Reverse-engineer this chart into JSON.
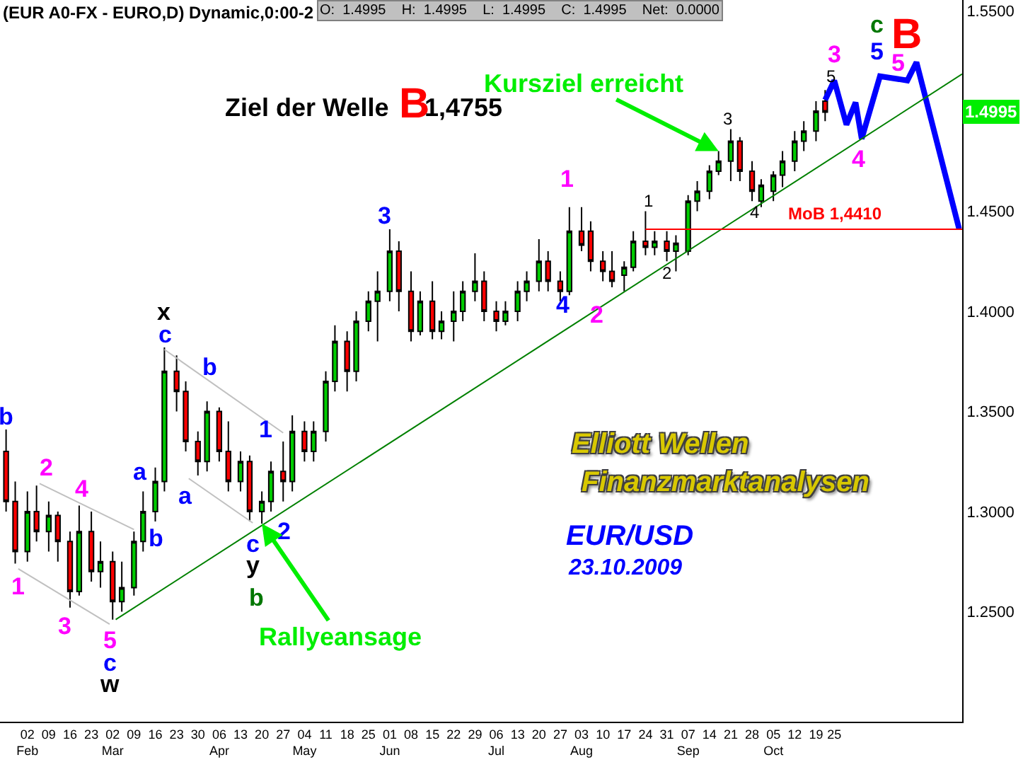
{
  "chart_data": {
    "type": "candlestick",
    "title": "(EUR A0-FX - EURO,D) Dynamic,0:00-2",
    "subtitle": "O:  1.4995    H:  1.4995    L:  1.4995    C:  1.4995    Net:  0.0000",
    "x": [
      "2009-01-26",
      "2009-01-29",
      "2009-02-02",
      "2009-02-05",
      "2009-02-09",
      "2009-02-12",
      "2009-02-16",
      "2009-02-19",
      "2009-02-23",
      "2009-02-26",
      "2009-03-02",
      "2009-03-05",
      "2009-03-09",
      "2009-03-12",
      "2009-03-16",
      "2009-03-19",
      "2009-03-23",
      "2009-03-26",
      "2009-03-30",
      "2009-04-02",
      "2009-04-06",
      "2009-04-09",
      "2009-04-13",
      "2009-04-16",
      "2009-04-20",
      "2009-04-23",
      "2009-04-27",
      "2009-04-30",
      "2009-05-04",
      "2009-05-07",
      "2009-05-11",
      "2009-05-14",
      "2009-05-18",
      "2009-05-21",
      "2009-05-25",
      "2009-05-28",
      "2009-06-01",
      "2009-06-04",
      "2009-06-08",
      "2009-06-11",
      "2009-06-15",
      "2009-06-18",
      "2009-06-22",
      "2009-06-25",
      "2009-06-29",
      "2009-07-02",
      "2009-07-06",
      "2009-07-09",
      "2009-07-13",
      "2009-07-16",
      "2009-07-20",
      "2009-07-23",
      "2009-07-27",
      "2009-07-30",
      "2009-08-03",
      "2009-08-06",
      "2009-08-10",
      "2009-08-13",
      "2009-08-17",
      "2009-08-20",
      "2009-08-24",
      "2009-08-27",
      "2009-08-31",
      "2009-09-03",
      "2009-09-07",
      "2009-09-10",
      "2009-09-14",
      "2009-09-17",
      "2009-09-21",
      "2009-09-24",
      "2009-09-28",
      "2009-10-01",
      "2009-10-05",
      "2009-10-08",
      "2009-10-12",
      "2009-10-15",
      "2009-10-19",
      "2009-10-22"
    ],
    "ohlc": [
      [
        1.33,
        1.341,
        1.3,
        1.305
      ],
      [
        1.305,
        1.315,
        1.274,
        1.28
      ],
      [
        1.28,
        1.31,
        1.275,
        1.3
      ],
      [
        1.3,
        1.313,
        1.285,
        1.29
      ],
      [
        1.29,
        1.305,
        1.28,
        1.298
      ],
      [
        1.298,
        1.3,
        1.275,
        1.285
      ],
      [
        1.285,
        1.29,
        1.252,
        1.26
      ],
      [
        1.26,
        1.303,
        1.258,
        1.29
      ],
      [
        1.29,
        1.3,
        1.265,
        1.27
      ],
      [
        1.27,
        1.285,
        1.262,
        1.275
      ],
      [
        1.275,
        1.28,
        1.246,
        1.255
      ],
      [
        1.255,
        1.275,
        1.25,
        1.262
      ],
      [
        1.262,
        1.29,
        1.258,
        1.285
      ],
      [
        1.285,
        1.31,
        1.28,
        1.3
      ],
      [
        1.3,
        1.322,
        1.295,
        1.315
      ],
      [
        1.315,
        1.382,
        1.31,
        1.37
      ],
      [
        1.37,
        1.378,
        1.35,
        1.36
      ],
      [
        1.36,
        1.365,
        1.33,
        1.335
      ],
      [
        1.335,
        1.34,
        1.318,
        1.325
      ],
      [
        1.325,
        1.355,
        1.32,
        1.35
      ],
      [
        1.35,
        1.352,
        1.325,
        1.33
      ],
      [
        1.33,
        1.345,
        1.31,
        1.315
      ],
      [
        1.315,
        1.33,
        1.31,
        1.325
      ],
      [
        1.325,
        1.328,
        1.295,
        1.3
      ],
      [
        1.3,
        1.31,
        1.294,
        1.305
      ],
      [
        1.305,
        1.325,
        1.3,
        1.32
      ],
      [
        1.32,
        1.335,
        1.305,
        1.315
      ],
      [
        1.315,
        1.348,
        1.31,
        1.34
      ],
      [
        1.34,
        1.345,
        1.325,
        1.33
      ],
      [
        1.33,
        1.345,
        1.325,
        1.34
      ],
      [
        1.34,
        1.37,
        1.335,
        1.365
      ],
      [
        1.365,
        1.393,
        1.36,
        1.385
      ],
      [
        1.385,
        1.39,
        1.36,
        1.37
      ],
      [
        1.37,
        1.4,
        1.365,
        1.395
      ],
      [
        1.395,
        1.41,
        1.39,
        1.405
      ],
      [
        1.405,
        1.42,
        1.385,
        1.41
      ],
      [
        1.41,
        1.441,
        1.405,
        1.43
      ],
      [
        1.43,
        1.435,
        1.4,
        1.41
      ],
      [
        1.41,
        1.42,
        1.385,
        1.39
      ],
      [
        1.39,
        1.41,
        1.388,
        1.405
      ],
      [
        1.405,
        1.415,
        1.386,
        1.39
      ],
      [
        1.39,
        1.4,
        1.386,
        1.395
      ],
      [
        1.395,
        1.41,
        1.385,
        1.4
      ],
      [
        1.4,
        1.415,
        1.395,
        1.41
      ],
      [
        1.41,
        1.429,
        1.405,
        1.415
      ],
      [
        1.415,
        1.42,
        1.395,
        1.4
      ],
      [
        1.4,
        1.405,
        1.39,
        1.395
      ],
      [
        1.395,
        1.405,
        1.393,
        1.4
      ],
      [
        1.4,
        1.415,
        1.395,
        1.41
      ],
      [
        1.41,
        1.42,
        1.405,
        1.415
      ],
      [
        1.415,
        1.436,
        1.41,
        1.425
      ],
      [
        1.425,
        1.43,
        1.41,
        1.415
      ],
      [
        1.415,
        1.42,
        1.405,
        1.41
      ],
      [
        1.41,
        1.452,
        1.408,
        1.44
      ],
      [
        1.44,
        1.452,
        1.43,
        1.433
      ],
      [
        1.44,
        1.445,
        1.42,
        1.425
      ],
      [
        1.425,
        1.43,
        1.415,
        1.42
      ],
      [
        1.42,
        1.43,
        1.412,
        1.415
      ],
      [
        1.418,
        1.425,
        1.41,
        1.422
      ],
      [
        1.422,
        1.44,
        1.42,
        1.435
      ],
      [
        1.435,
        1.45,
        1.428,
        1.432
      ],
      [
        1.432,
        1.44,
        1.428,
        1.435
      ],
      [
        1.435,
        1.44,
        1.425,
        1.43
      ],
      [
        1.43,
        1.438,
        1.42,
        1.434
      ],
      [
        1.43,
        1.458,
        1.428,
        1.455
      ],
      [
        1.455,
        1.465,
        1.45,
        1.46
      ],
      [
        1.46,
        1.473,
        1.456,
        1.47
      ],
      [
        1.47,
        1.48,
        1.468,
        1.475
      ],
      [
        1.475,
        1.491,
        1.465,
        1.485
      ],
      [
        1.485,
        1.487,
        1.465,
        1.47
      ],
      [
        1.47,
        1.475,
        1.455,
        1.46
      ],
      [
        1.455,
        1.466,
        1.452,
        1.463
      ],
      [
        1.46,
        1.47,
        1.455,
        1.468
      ],
      [
        1.468,
        1.48,
        1.462,
        1.475
      ],
      [
        1.475,
        1.49,
        1.47,
        1.485
      ],
      [
        1.485,
        1.495,
        1.48,
        1.49
      ],
      [
        1.49,
        1.505,
        1.485,
        1.5
      ],
      [
        1.505,
        1.5105,
        1.495,
        1.4995
      ]
    ],
    "colors": [
      "#ff0000",
      "#ff0000",
      "#00cc00",
      "#ff0000",
      "#00cc00",
      "#ff0000",
      "#ff0000",
      "#00cc00",
      "#ff0000",
      "#00cc00",
      "#ff0000",
      "#00cc00",
      "#00cc00",
      "#00cc00",
      "#00cc00",
      "#00cc00",
      "#ff0000",
      "#ff0000",
      "#ff0000",
      "#00cc00",
      "#ff0000",
      "#ff0000",
      "#00cc00",
      "#ff0000",
      "#00cc00",
      "#00cc00",
      "#ff0000",
      "#00cc00",
      "#ff0000",
      "#00cc00",
      "#00cc00",
      "#00cc00",
      "#ff0000",
      "#00cc00",
      "#00cc00",
      "#00cc00",
      "#00cc00",
      "#ff0000",
      "#ff0000",
      "#00cc00",
      "#ff0000",
      "#00cc00",
      "#00cc00",
      "#00cc00",
      "#00cc00",
      "#ff0000",
      "#ff0000",
      "#00cc00",
      "#00cc00",
      "#00cc00",
      "#00cc00",
      "#ff0000",
      "#ff0000",
      "#00cc00",
      "#ff0000",
      "#ff0000",
      "#ff0000",
      "#ff0000",
      "#00cc00",
      "#00cc00",
      "#ff0000",
      "#00cc00",
      "#ff0000",
      "#00cc00",
      "#00cc00",
      "#00cc00",
      "#00cc00",
      "#00cc00",
      "#00cc00",
      "#ff0000",
      "#ff0000",
      "#00cc00",
      "#00cc00",
      "#00cc00",
      "#00cc00",
      "#00cc00",
      "#00cc00",
      "#ff0000"
    ],
    "series": [
      {
        "type": "line",
        "color": "#0000ff",
        "x": [
          "2009-10-22",
          "2009-10-25",
          "2009-10-29",
          "2009-11-01",
          "2009-11-03",
          "2009-11-09",
          "2009-11-18",
          "2009-11-21",
          "2009-12-05"
        ],
        "values": [
          1.5056,
          1.5153,
          1.4932,
          1.5043,
          1.4862,
          1.5174,
          1.5153,
          1.5244,
          1.4412
        ]
      },
      {
        "type": "line",
        "color": "#008000",
        "x": [
          "2009-03-03",
          "2009-12-06"
        ],
        "values": [
          1.246,
          1.5185
        ]
      },
      {
        "type": "line",
        "color": "#c0c0c0",
        "x": [
          "2009-02-06",
          "2009-03-09"
        ],
        "values": [
          1.314,
          1.291
        ]
      },
      {
        "type": "line",
        "color": "#c0c0c0",
        "x": [
          "2009-01-30",
          "2009-03-01"
        ],
        "values": [
          1.2714,
          1.2437
        ]
      },
      {
        "type": "line",
        "color": "#c0c0c0",
        "x": [
          "2009-03-19",
          "2009-04-27"
        ],
        "values": [
          1.3809,
          1.3393
        ]
      },
      {
        "type": "line",
        "color": "#c0c0c0",
        "x": [
          "2009-03-27",
          "2009-04-17"
        ],
        "values": [
          1.3165,
          1.2943
        ]
      },
      {
        "type": "line",
        "color": "#ff0000",
        "x": [
          "2009-08-24",
          "2009-12-06"
        ],
        "values": [
          1.441,
          1.441
        ]
      }
    ],
    "xlim": [
      "2009-01-24",
      "2009-12-06"
    ],
    "xticks": [
      {
        "value": "2009-02-02",
        "label": "02\nFeb"
      },
      {
        "value": "2009-02-09",
        "label": "09"
      },
      {
        "value": "2009-02-16",
        "label": "16"
      },
      {
        "value": "2009-02-23",
        "label": "23"
      },
      {
        "value": "2009-03-02",
        "label": "02\nMar"
      },
      {
        "value": "2009-03-09",
        "label": "09"
      },
      {
        "value": "2009-03-16",
        "label": "16"
      },
      {
        "value": "2009-03-23",
        "label": "23"
      },
      {
        "value": "2009-03-30",
        "label": "30"
      },
      {
        "value": "2009-04-06",
        "label": "06\nApr"
      },
      {
        "value": "2009-04-13",
        "label": "13"
      },
      {
        "value": "2009-04-20",
        "label": "20"
      },
      {
        "value": "2009-04-27",
        "label": "27"
      },
      {
        "value": "2009-05-04",
        "label": "04\nMay"
      },
      {
        "value": "2009-05-11",
        "label": "11"
      },
      {
        "value": "2009-05-18",
        "label": "18"
      },
      {
        "value": "2009-05-25",
        "label": "25"
      },
      {
        "value": "2009-06-01",
        "label": "01\nJun"
      },
      {
        "value": "2009-06-08",
        "label": "08"
      },
      {
        "value": "2009-06-15",
        "label": "15"
      },
      {
        "value": "2009-06-22",
        "label": "22"
      },
      {
        "value": "2009-06-29",
        "label": "29"
      },
      {
        "value": "2009-07-06",
        "label": "06\nJul"
      },
      {
        "value": "2009-07-13",
        "label": "13"
      },
      {
        "value": "2009-07-20",
        "label": "20"
      },
      {
        "value": "2009-07-27",
        "label": "27"
      },
      {
        "value": "2009-08-03",
        "label": "03\nAug"
      },
      {
        "value": "2009-08-10",
        "label": "10"
      },
      {
        "value": "2009-08-17",
        "label": "17"
      },
      {
        "value": "2009-08-24",
        "label": "24"
      },
      {
        "value": "2009-08-31",
        "label": "31"
      },
      {
        "value": "2009-09-07",
        "label": "07\nSep"
      },
      {
        "value": "2009-09-14",
        "label": "14"
      },
      {
        "value": "2009-09-21",
        "label": "21"
      },
      {
        "value": "2009-09-28",
        "label": "28"
      },
      {
        "value": "2009-10-05",
        "label": "05\nOct"
      },
      {
        "value": "2009-10-12",
        "label": "12"
      },
      {
        "value": "2009-10-19",
        "label": "19"
      },
      {
        "value": "2009-10-25",
        "label": "25"
      }
    ],
    "ylim": [
      1.195,
      1.5555
    ],
    "yticks": [
      {
        "value": 1.25,
        "label": "1.2500"
      },
      {
        "value": 1.3,
        "label": "1.3000"
      },
      {
        "value": 1.35,
        "label": "1.3500"
      },
      {
        "value": 1.4,
        "label": "1.4000"
      },
      {
        "value": 1.45,
        "label": "1.4500"
      },
      {
        "value": 1.55,
        "label": "1.5500"
      }
    ],
    "annotations": [
      "b",
      "1",
      "2",
      "3",
      "4",
      "5",
      "c",
      "w",
      "a",
      "b",
      "c",
      "x",
      "a",
      "b",
      "1",
      "2",
      "c",
      "y",
      "b",
      "3",
      "4",
      "1",
      "2",
      "1",
      "2",
      "3",
      "4",
      "5",
      "3",
      "4",
      "5",
      "5",
      "c",
      "B",
      "Ziel der Welle",
      "B",
      "1,4755",
      {
        "text": "Kursziel erreicht",
        "x": "2009-09-17",
        "y": 1.48
      },
      {
        "text": "Rallyeansage",
        "x": "2009-04-20",
        "y": 1.294
      },
      "Elliott Wellen",
      "Finanzmarktanalysen",
      "EUR/USD",
      "23.10.2009",
      {
        "text": "MoB 1,4410",
        "x": "2009-10-25",
        "y": 1.441
      },
      "1.4995"
    ]
  }
}
